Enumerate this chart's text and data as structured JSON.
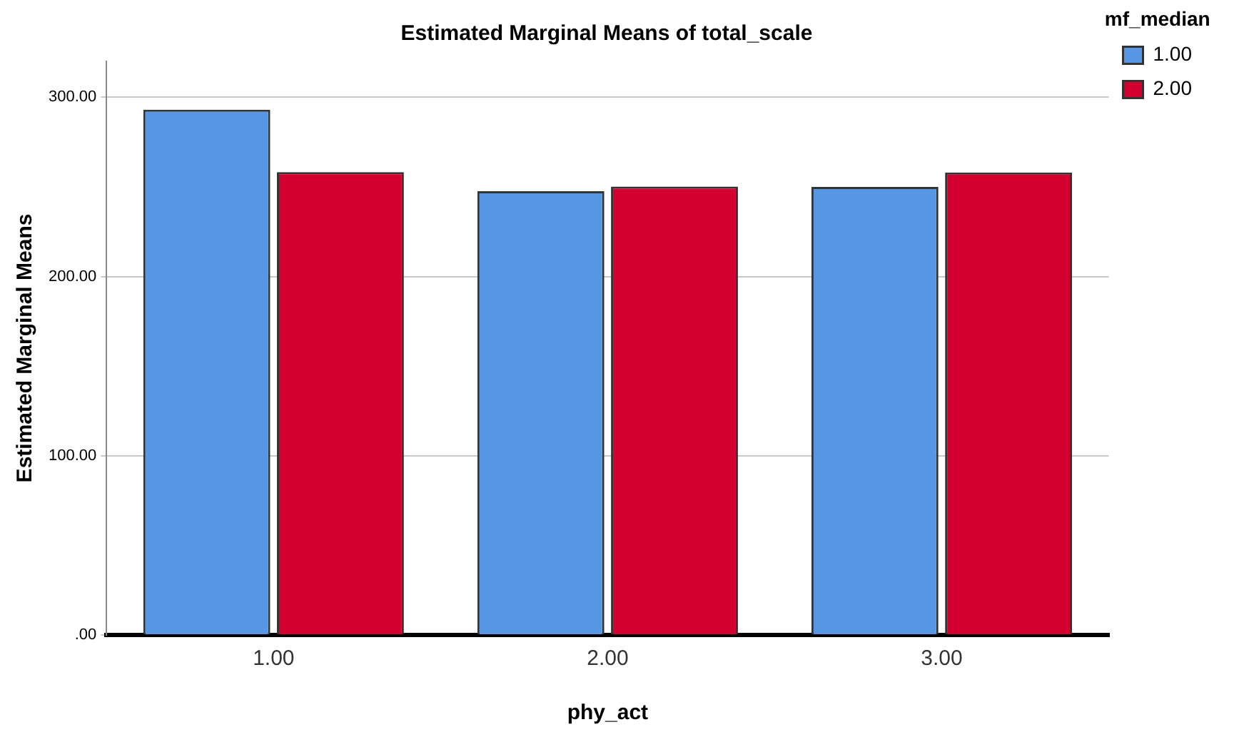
{
  "chart_data": {
    "type": "bar",
    "title": "Estimated Marginal Means of total_scale",
    "xlabel": "phy_act",
    "ylabel": "Estimated Marginal Means",
    "legend_title": "mf_median",
    "categories": [
      "1.00",
      "2.00",
      "3.00"
    ],
    "series": [
      {
        "name": "1.00",
        "color": "#5696e3",
        "values": [
          293,
          247.6,
          250
        ]
      },
      {
        "name": "2.00",
        "color": "#d3002f",
        "values": [
          258.2,
          250.1,
          258
        ]
      }
    ],
    "ylim": [
      0,
      320
    ],
    "yticks": [
      {
        "value": 0,
        "label": ".00"
      },
      {
        "value": 100,
        "label": "100.00"
      },
      {
        "value": 200,
        "label": "200.00"
      },
      {
        "value": 300,
        "label": "300.00"
      }
    ],
    "grid": "y",
    "legend": "top right"
  }
}
